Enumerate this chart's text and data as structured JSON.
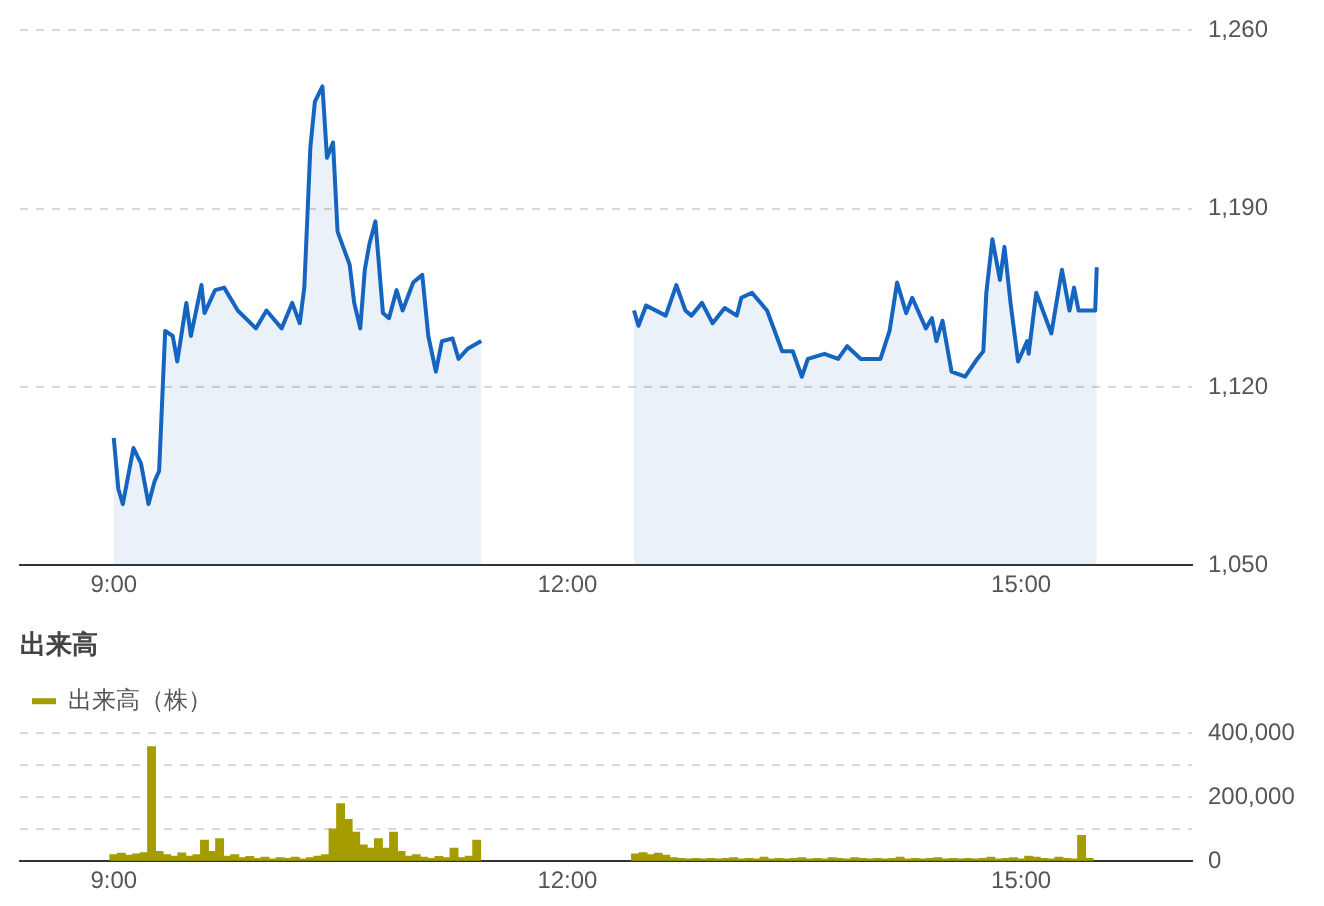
{
  "chart_data": [
    {
      "type": "area",
      "color": "#1565c0",
      "x": [
        9.0,
        9.03,
        9.06,
        9.13,
        9.18,
        9.23,
        9.27,
        9.3,
        9.34,
        9.39,
        9.42,
        9.48,
        9.51,
        9.58,
        9.6,
        9.67,
        9.73,
        9.82,
        9.94,
        10.01,
        10.11,
        10.18,
        10.23,
        10.26,
        10.3,
        10.33,
        10.38,
        10.41,
        10.45,
        10.48,
        10.56,
        10.59,
        10.63,
        10.66,
        10.69,
        10.73,
        10.78,
        10.82,
        10.87,
        10.91,
        10.98,
        11.04,
        11.08,
        11.13,
        11.17,
        11.24,
        11.28,
        11.34,
        11.43,
        12.0,
        12.44,
        12.47,
        12.52,
        12.65,
        12.72,
        12.78,
        12.82,
        12.89,
        12.96,
        13.04,
        13.12,
        13.15,
        13.22,
        13.32,
        13.42,
        13.49,
        13.55,
        13.59,
        13.7,
        13.79,
        13.85,
        13.94,
        14.07,
        14.13,
        14.18,
        14.24,
        14.28,
        14.37,
        14.41,
        14.44,
        14.48,
        14.54,
        14.63,
        14.71,
        14.75,
        14.77,
        14.81,
        14.86,
        14.89,
        14.93,
        14.98,
        15.04,
        15.05,
        15.1,
        15.2,
        15.27,
        15.32,
        15.35,
        15.38,
        15.49,
        15.5
      ],
      "values": [
        1100,
        1080,
        1074,
        1096,
        1090,
        1074,
        1083,
        1087,
        1142,
        1140,
        1130,
        1153,
        1140,
        1160,
        1149,
        1158,
        1159,
        1150,
        1143,
        1150,
        1143,
        1153,
        1145,
        1159,
        1214,
        1232,
        1238,
        1210,
        1216,
        1181,
        1168,
        1153,
        1143,
        1166,
        1176,
        1185,
        1149,
        1147,
        1158,
        1150,
        1161,
        1164,
        1140,
        1126,
        1138,
        1139,
        1131,
        1135,
        1138,
        null,
        1150,
        1144,
        1152,
        1148,
        1160,
        1150,
        1148,
        1153,
        1145,
        1151,
        1148,
        1155,
        1157,
        1150,
        1134,
        1134,
        1124,
        1131,
        1133,
        1131,
        1136,
        1131,
        1131,
        1142,
        1161,
        1149,
        1155,
        1143,
        1147,
        1138,
        1146,
        1126,
        1124,
        1131,
        1134,
        1157,
        1178,
        1162,
        1175,
        1153,
        1130,
        1138,
        1133,
        1157,
        1141,
        1166,
        1150,
        1159,
        1150,
        1150,
        1167
      ],
      "xlim": [
        8.38,
        16.13
      ],
      "xticks": [
        {
          "value": 9,
          "label": "9:00"
        },
        {
          "value": 12,
          "label": "12:00"
        },
        {
          "value": 15,
          "label": "15:00"
        }
      ],
      "ylim": [
        1050,
        1260
      ],
      "yticks": [
        {
          "value": 1050,
          "label": "1,050"
        },
        {
          "value": 1120,
          "label": "1,120"
        },
        {
          "value": 1190,
          "label": "1,190"
        },
        {
          "value": 1260,
          "label": "1,260"
        }
      ],
      "grid": "y",
      "marker": "none",
      "line_style": "solid"
    },
    {
      "type": "bar",
      "title": "出来高",
      "legend": "top left",
      "series": [
        {
          "name": "出来高（株）",
          "color": "#a59d00",
          "x": [
            9.0,
            9.05,
            9.1,
            9.15,
            9.2,
            9.25,
            9.3,
            9.35,
            9.4,
            9.45,
            9.5,
            9.55,
            9.6,
            9.65,
            9.7,
            9.75,
            9.8,
            9.85,
            9.9,
            9.95,
            10.0,
            10.05,
            10.1,
            10.15,
            10.2,
            10.25,
            10.3,
            10.35,
            10.4,
            10.45,
            10.5,
            10.55,
            10.6,
            10.65,
            10.7,
            10.75,
            10.8,
            10.85,
            10.9,
            10.95,
            11.0,
            11.05,
            11.1,
            11.15,
            11.2,
            11.25,
            11.3,
            11.35,
            11.4,
            12.45,
            12.5,
            12.55,
            12.6,
            12.65,
            12.7,
            12.75,
            12.8,
            12.85,
            12.9,
            12.95,
            13.0,
            13.05,
            13.1,
            13.15,
            13.2,
            13.25,
            13.3,
            13.35,
            13.4,
            13.45,
            13.5,
            13.55,
            13.6,
            13.65,
            13.7,
            13.75,
            13.8,
            13.85,
            13.9,
            13.95,
            14.0,
            14.05,
            14.1,
            14.15,
            14.2,
            14.25,
            14.3,
            14.35,
            14.4,
            14.45,
            14.5,
            14.55,
            14.6,
            14.65,
            14.7,
            14.75,
            14.8,
            14.85,
            14.9,
            14.95,
            15.0,
            15.05,
            15.1,
            15.15,
            15.2,
            15.25,
            15.3,
            15.35,
            15.4,
            15.45
          ],
          "values": [
            20000,
            24000,
            18000,
            22000,
            26000,
            357000,
            30000,
            20000,
            15000,
            25000,
            15000,
            20000,
            65000,
            30000,
            70000,
            15000,
            20000,
            10000,
            14000,
            8000,
            12000,
            6000,
            10000,
            8000,
            12000,
            6000,
            10000,
            15000,
            20000,
            100000,
            179000,
            130000,
            90000,
            50000,
            40000,
            70000,
            40000,
            90000,
            30000,
            15000,
            20000,
            12000,
            8000,
            14000,
            10000,
            40000,
            10000,
            15000,
            65000,
            22000,
            26000,
            20000,
            24000,
            18000,
            10000,
            8000,
            6000,
            8000,
            6000,
            8000,
            6000,
            8000,
            10000,
            6000,
            8000,
            6000,
            12000,
            6000,
            8000,
            6000,
            8000,
            10000,
            6000,
            8000,
            6000,
            10000,
            8000,
            6000,
            10000,
            8000,
            6000,
            8000,
            6000,
            8000,
            12000,
            6000,
            8000,
            6000,
            8000,
            10000,
            6000,
            8000,
            6000,
            8000,
            6000,
            8000,
            12000,
            6000,
            8000,
            10000,
            6000,
            15000,
            12000,
            8000,
            6000,
            12000,
            8000,
            6000,
            80000,
            8000
          ]
        }
      ],
      "xlim": [
        8.38,
        16.13
      ],
      "xticks": [
        {
          "value": 9,
          "label": "9:00"
        },
        {
          "value": 12,
          "label": "12:00"
        },
        {
          "value": 15,
          "label": "15:00"
        }
      ],
      "ylim": [
        0,
        400000
      ],
      "yticks": [
        {
          "value": 0,
          "label": "0"
        },
        {
          "value": 100000,
          "label": null
        },
        {
          "value": 200000,
          "label": "200,000"
        },
        {
          "value": 300000,
          "label": null
        },
        {
          "value": 400000,
          "label": "400,000"
        }
      ],
      "grid": "y"
    }
  ]
}
